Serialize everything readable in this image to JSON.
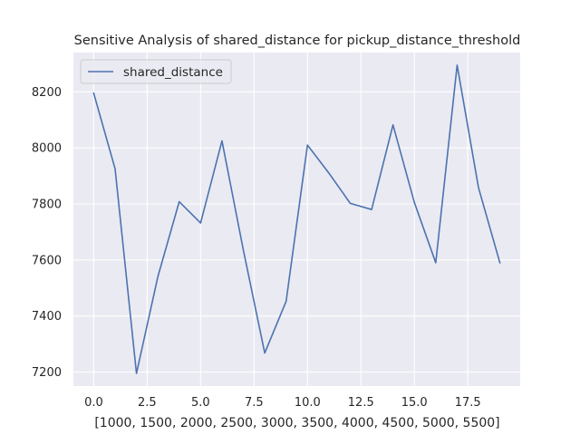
{
  "chart_data": {
    "type": "line",
    "title": "Sensitive Analysis of shared_distance for pickup_distance_threshold",
    "xlabel": "[1000, 1500, 2000, 2500, 3000, 3500, 4000, 4500, 5000, 5500]",
    "ylabel": "",
    "xlim": [
      -0.95,
      19.95
    ],
    "ylim": [
      7150,
      8340
    ],
    "x_ticks": [
      0.0,
      2.5,
      5.0,
      7.5,
      10.0,
      12.5,
      15.0,
      17.5
    ],
    "x_tick_labels": [
      "0.0",
      "2.5",
      "5.0",
      "7.5",
      "10.0",
      "12.5",
      "15.0",
      "17.5"
    ],
    "y_ticks": [
      7200,
      7400,
      7600,
      7800,
      8000,
      8200
    ],
    "y_tick_labels": [
      "7200",
      "7400",
      "7600",
      "7800",
      "8000",
      "8200"
    ],
    "grid": true,
    "legend_position": "top-left",
    "background_color": "#eaeaf2",
    "grid_color": "#ffffff",
    "series": [
      {
        "name": "shared_distance",
        "color": "#4c72b0",
        "x": [
          0,
          1,
          2,
          3,
          4,
          5,
          6,
          7,
          8,
          9,
          10,
          11,
          12,
          13,
          14,
          15,
          16,
          17,
          18,
          19
        ],
        "y": [
          8195,
          7925,
          7195,
          7540,
          7808,
          7732,
          8025,
          7635,
          7268,
          7452,
          8010,
          7910,
          7802,
          7780,
          8082,
          7805,
          7590,
          8295,
          7858,
          7590
        ]
      }
    ]
  }
}
